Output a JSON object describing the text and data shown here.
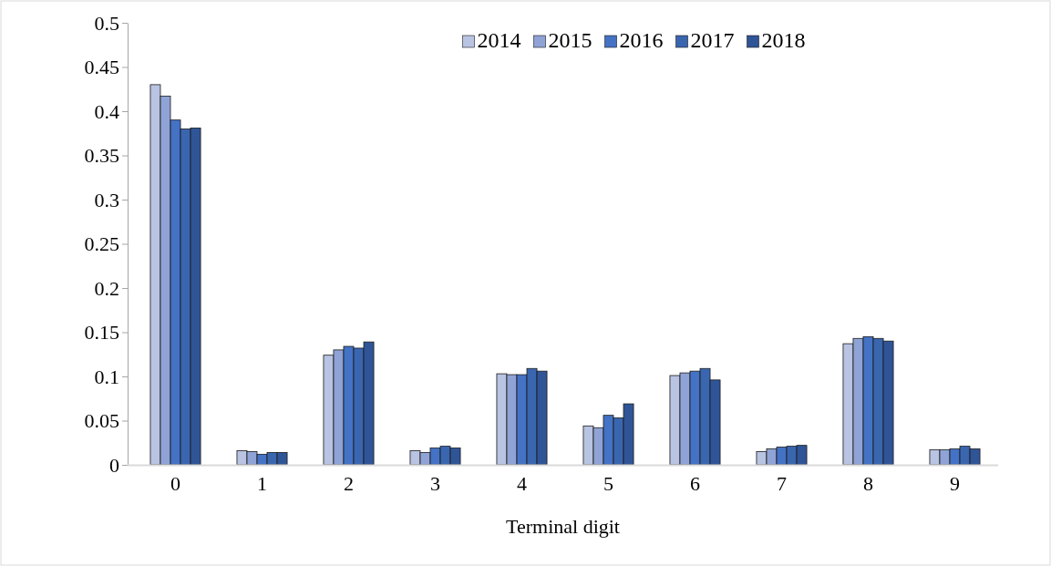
{
  "chart_data": {
    "type": "bar",
    "xlabel": "Terminal digit",
    "categories": [
      "0",
      "1",
      "2",
      "3",
      "4",
      "5",
      "6",
      "7",
      "8",
      "9"
    ],
    "series": [
      {
        "name": "2014",
        "color": "#b9c3e2",
        "values": [
          0.43,
          0.016,
          0.124,
          0.016,
          0.103,
          0.044,
          0.101,
          0.015,
          0.137,
          0.017
        ]
      },
      {
        "name": "2015",
        "color": "#8fa3d6",
        "values": [
          0.417,
          0.015,
          0.13,
          0.014,
          0.102,
          0.042,
          0.104,
          0.018,
          0.143,
          0.017
        ]
      },
      {
        "name": "2016",
        "color": "#4472c4",
        "values": [
          0.39,
          0.012,
          0.134,
          0.019,
          0.102,
          0.056,
          0.106,
          0.02,
          0.145,
          0.018
        ]
      },
      {
        "name": "2017",
        "color": "#3a66b0",
        "values": [
          0.38,
          0.014,
          0.132,
          0.021,
          0.109,
          0.053,
          0.109,
          0.021,
          0.143,
          0.021
        ]
      },
      {
        "name": "2018",
        "color": "#2f5597",
        "values": [
          0.381,
          0.014,
          0.139,
          0.019,
          0.106,
          0.069,
          0.096,
          0.022,
          0.14,
          0.018
        ]
      }
    ],
    "ylim": [
      0,
      0.5
    ],
    "yticks": [
      0,
      0.05,
      0.1,
      0.15,
      0.2,
      0.25,
      0.3,
      0.35,
      0.4,
      0.45,
      0.5
    ],
    "grid": false,
    "legend": "top"
  }
}
